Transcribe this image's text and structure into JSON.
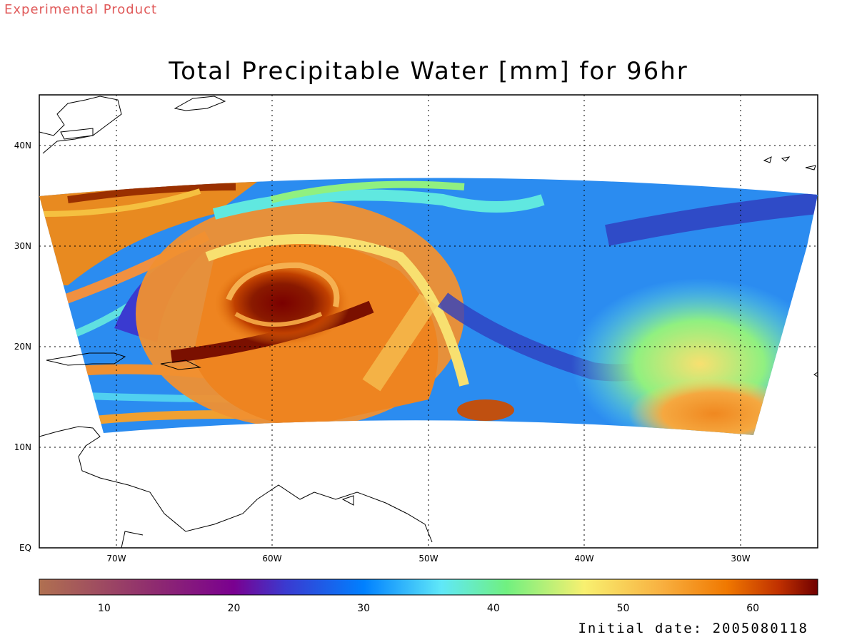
{
  "banner": {
    "text": "Experimental Product",
    "color": "#e05a5a"
  },
  "title": "Total Precipitable Water [mm] for 96hr",
  "initial_date": "Initial date: 2005080118",
  "axes": {
    "x_ticks": [
      "70W",
      "60W",
      "50W",
      "40W",
      "30W"
    ],
    "y_ticks": [
      "EQ",
      "10N",
      "20N",
      "30N",
      "40N"
    ]
  },
  "colorbar": {
    "range": [
      5,
      65
    ],
    "tick_labels": [
      "10",
      "20",
      "30",
      "40",
      "50",
      "60"
    ],
    "tick_values": [
      10,
      20,
      30,
      40,
      50,
      60
    ],
    "stops": [
      {
        "v": 5,
        "c": "#b07050"
      },
      {
        "v": 14,
        "c": "#8e2a70"
      },
      {
        "v": 20,
        "c": "#7a0090"
      },
      {
        "v": 24,
        "c": "#3a3ad0"
      },
      {
        "v": 30,
        "c": "#0080ff"
      },
      {
        "v": 36,
        "c": "#60e8f8"
      },
      {
        "v": 41,
        "c": "#70f080"
      },
      {
        "v": 47,
        "c": "#f8f070"
      },
      {
        "v": 53,
        "c": "#f8b040"
      },
      {
        "v": 58,
        "c": "#f07800"
      },
      {
        "v": 62,
        "c": "#c03000"
      },
      {
        "v": 65,
        "c": "#700000"
      }
    ]
  },
  "map": {
    "lon_range": [
      -75,
      -25
    ],
    "lat_range": [
      0,
      45
    ],
    "feature": "hurricane-vortex"
  }
}
